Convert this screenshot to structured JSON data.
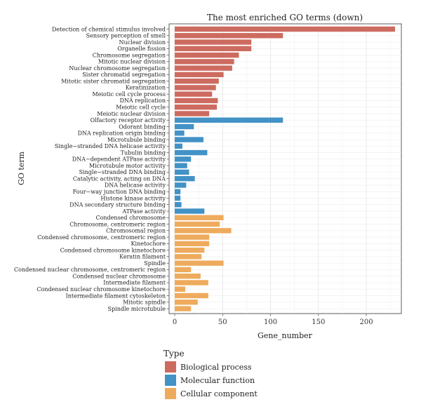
{
  "chart_data": {
    "type": "bar",
    "orientation": "horizontal",
    "title": "The most enriched GO terms (down)",
    "xlabel": "Gene_number",
    "ylabel": "GO term",
    "xlim": [
      0,
      235
    ],
    "xticks": [
      0,
      50,
      100,
      150,
      200
    ],
    "grid": true,
    "legend_position": "bottom-left",
    "legend_title": "Type",
    "series": [
      {
        "name": "Biological process",
        "color": "#cd6b60"
      },
      {
        "name": "Molecular function",
        "color": "#4292c6"
      },
      {
        "name": "Cellular component",
        "color": "#eeab5d"
      }
    ],
    "categories": [
      "Detection of chemical stimulus involved",
      "Sensory perception of smell",
      "Nuclear division",
      "Organelle fission",
      "Chromosome segregation",
      "Mitotic nuclear division",
      "Nuclear chromosome segregation",
      "Sister chromatid segregation",
      "Mitotic sister chromatid segregation",
      "Keratinization",
      "Meiotic cell cycle process",
      "DNA replication",
      "Meiotic cell cycle",
      "Meiotic nuclear division",
      "Olfactory receptor activity",
      "Odorant binding",
      "DNA replication origin binding",
      "Microtubule binding",
      "Single−stranded DNA helicase activity",
      "Tubulin binding",
      "DNA−dependent ATPase activity",
      "Microtubule motor activity",
      "Single−stranded DNA binding",
      "Catalytic activity, acting on DNA",
      "DNA helicase activity",
      "Four−way junction DNA binding",
      "Histone kinase activity",
      "DNA secondary structure binding",
      "ATPase activity",
      "Condensed chromosome",
      "Chromosome, centromeric region",
      "Chromosomal region",
      "Condensed chromosome, centromeric region",
      "Kinetochore",
      "Condensed chromosome kinetochore",
      "Keratin filament",
      "Spindle",
      "Condensed nuclear chromosome, centromeric region",
      "Condensed nuclear chromosome",
      "Intermediate filament",
      "Condensed nuclear chromosome kinetochore",
      "Intermediate filament cytoskeleton",
      "Mitotic spindle",
      "Spindle microtubule"
    ],
    "values": [
      230,
      113,
      80,
      80,
      67,
      62,
      60,
      51,
      46,
      43,
      39,
      45,
      44,
      36,
      113,
      20,
      10,
      30,
      8,
      34,
      17,
      13,
      15,
      21,
      12,
      6,
      6,
      7,
      31,
      51,
      47,
      59,
      36,
      36,
      31,
      28,
      51,
      17,
      27,
      35,
      11,
      35,
      24,
      17
    ],
    "groups": [
      0,
      0,
      0,
      0,
      0,
      0,
      0,
      0,
      0,
      0,
      0,
      0,
      0,
      0,
      1,
      1,
      1,
      1,
      1,
      1,
      1,
      1,
      1,
      1,
      1,
      1,
      1,
      1,
      1,
      2,
      2,
      2,
      2,
      2,
      2,
      2,
      2,
      2,
      2,
      2,
      2,
      2,
      2,
      2
    ]
  }
}
